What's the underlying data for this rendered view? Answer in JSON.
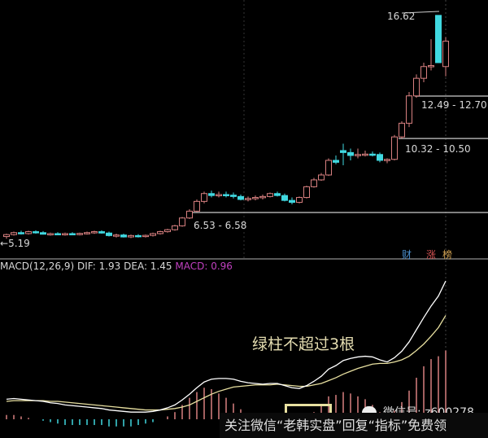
{
  "chart_data": [
    {
      "type": "candlestick",
      "price_range": [
        5.0,
        17.0
      ],
      "colors": {
        "up": "#d88080",
        "down": "#40d8e0",
        "background": "#000000"
      },
      "ohlc": [
        [
          5.3,
          5.45,
          5.19,
          5.4
        ],
        [
          5.4,
          5.55,
          5.35,
          5.5
        ],
        [
          5.5,
          5.6,
          5.4,
          5.45
        ],
        [
          5.45,
          5.6,
          5.4,
          5.55
        ],
        [
          5.55,
          5.62,
          5.45,
          5.5
        ],
        [
          5.5,
          5.58,
          5.4,
          5.42
        ],
        [
          5.42,
          5.5,
          5.35,
          5.45
        ],
        [
          5.45,
          5.52,
          5.38,
          5.4
        ],
        [
          5.4,
          5.5,
          5.35,
          5.45
        ],
        [
          5.45,
          5.52,
          5.38,
          5.42
        ],
        [
          5.42,
          5.5,
          5.36,
          5.46
        ],
        [
          5.46,
          5.55,
          5.4,
          5.5
        ],
        [
          5.5,
          5.6,
          5.44,
          5.55
        ],
        [
          5.55,
          5.62,
          5.45,
          5.48
        ],
        [
          5.48,
          5.55,
          5.3,
          5.35
        ],
        [
          5.35,
          5.45,
          5.25,
          5.38
        ],
        [
          5.38,
          5.45,
          5.25,
          5.28
        ],
        [
          5.28,
          5.4,
          5.22,
          5.35
        ],
        [
          5.35,
          5.42,
          5.25,
          5.3
        ],
        [
          5.3,
          5.4,
          5.25,
          5.36
        ],
        [
          5.36,
          5.5,
          5.3,
          5.45
        ],
        [
          5.45,
          5.6,
          5.4,
          5.55
        ],
        [
          5.55,
          5.7,
          5.5,
          5.65
        ],
        [
          5.65,
          5.9,
          5.6,
          5.85
        ],
        [
          5.85,
          6.3,
          5.8,
          6.25
        ],
        [
          6.25,
          6.7,
          6.2,
          6.6
        ],
        [
          6.6,
          7.2,
          6.55,
          7.1
        ],
        [
          7.1,
          7.6,
          7.0,
          7.5
        ],
        [
          7.5,
          7.65,
          7.3,
          7.4
        ],
        [
          7.4,
          7.6,
          7.3,
          7.45
        ],
        [
          7.45,
          7.6,
          7.3,
          7.42
        ],
        [
          7.42,
          7.55,
          7.25,
          7.35
        ],
        [
          7.35,
          7.45,
          7.15,
          7.2
        ],
        [
          7.2,
          7.35,
          7.1,
          7.25
        ],
        [
          7.25,
          7.4,
          7.15,
          7.3
        ],
        [
          7.3,
          7.45,
          7.2,
          7.35
        ],
        [
          7.35,
          7.55,
          7.3,
          7.5
        ],
        [
          7.5,
          7.6,
          7.35,
          7.4
        ],
        [
          7.4,
          7.5,
          7.1,
          7.15
        ],
        [
          7.15,
          7.3,
          6.95,
          7.05
        ],
        [
          7.05,
          7.35,
          7.0,
          7.3
        ],
        [
          7.3,
          7.9,
          7.25,
          7.85
        ],
        [
          7.85,
          8.3,
          7.8,
          8.2
        ],
        [
          8.2,
          8.55,
          8.15,
          8.45
        ],
        [
          8.45,
          9.3,
          8.4,
          9.2
        ],
        [
          9.2,
          9.45,
          9.0,
          9.1
        ],
        [
          9.7,
          10.05,
          8.95,
          9.6
        ],
        [
          9.6,
          9.8,
          9.2,
          9.45
        ],
        [
          9.45,
          9.8,
          9.3,
          9.5
        ],
        [
          9.5,
          9.7,
          9.4,
          9.52
        ],
        [
          9.52,
          9.65,
          9.4,
          9.5
        ],
        [
          9.5,
          9.6,
          9.1,
          9.2
        ],
        [
          9.2,
          9.3,
          9.05,
          9.25
        ],
        [
          9.25,
          10.5,
          9.2,
          10.4
        ],
        [
          10.4,
          11.2,
          10.3,
          11.1
        ],
        [
          11.1,
          12.7,
          10.9,
          12.5
        ],
        [
          12.5,
          13.6,
          12.4,
          13.4
        ],
        [
          13.4,
          14.2,
          13.2,
          14.0
        ],
        [
          14.0,
          15.4,
          13.8,
          14.05
        ],
        [
          16.62,
          16.62,
          14.2,
          14.2
        ],
        [
          14.0,
          15.5,
          13.5,
          15.3
        ]
      ],
      "annotations": {
        "high": "16.62",
        "low": "5.19",
        "zone1": "12.49 - 12.70",
        "zone2": "10.32 - 10.50",
        "zone3": "6.53 - 6.58"
      },
      "zone_levels": [
        12.49,
        10.32,
        6.53
      ],
      "badges": [
        {
          "text": "财",
          "color": "#4a90d0"
        },
        {
          "text": "涨",
          "color": "#d05050"
        },
        {
          "text": "榜",
          "color": "#d0a050"
        }
      ]
    },
    {
      "type": "line+bar",
      "header": {
        "title": "MACD(12,26,9)",
        "dif": "DIF: 1.93",
        "dea": "DEA: 1.45",
        "macd": "MACD: 0.96"
      },
      "colors": {
        "dif": "#ffffff",
        "dea": "#e8e0a0",
        "hist_up": "#d88080",
        "hist_down": "#40d8e0",
        "macd_label": "#c040c0"
      },
      "dif": [
        0.28,
        0.29,
        0.28,
        0.27,
        0.26,
        0.25,
        0.23,
        0.22,
        0.2,
        0.19,
        0.18,
        0.17,
        0.16,
        0.15,
        0.13,
        0.12,
        0.11,
        0.1,
        0.1,
        0.1,
        0.11,
        0.13,
        0.16,
        0.2,
        0.27,
        0.35,
        0.44,
        0.52,
        0.56,
        0.57,
        0.57,
        0.56,
        0.53,
        0.51,
        0.5,
        0.49,
        0.5,
        0.5,
        0.47,
        0.44,
        0.43,
        0.47,
        0.53,
        0.6,
        0.7,
        0.75,
        0.82,
        0.85,
        0.87,
        0.88,
        0.87,
        0.83,
        0.8,
        0.86,
        0.95,
        1.08,
        1.25,
        1.42,
        1.58,
        1.72,
        1.93
      ],
      "dea": [
        0.25,
        0.26,
        0.26,
        0.26,
        0.26,
        0.26,
        0.25,
        0.25,
        0.24,
        0.23,
        0.22,
        0.21,
        0.2,
        0.19,
        0.18,
        0.17,
        0.16,
        0.15,
        0.14,
        0.13,
        0.13,
        0.13,
        0.14,
        0.15,
        0.17,
        0.2,
        0.25,
        0.3,
        0.35,
        0.39,
        0.42,
        0.45,
        0.46,
        0.47,
        0.48,
        0.48,
        0.48,
        0.49,
        0.48,
        0.47,
        0.46,
        0.46,
        0.48,
        0.5,
        0.54,
        0.58,
        0.63,
        0.67,
        0.71,
        0.74,
        0.77,
        0.78,
        0.78,
        0.8,
        0.83,
        0.88,
        0.96,
        1.05,
        1.16,
        1.28,
        1.45
      ]
    }
  ],
  "overlay": {
    "note": "绿柱不超过3根",
    "watermark": "微信号: z600278",
    "banner": "关注微信“老韩实盘”回复“指标”免费领"
  }
}
